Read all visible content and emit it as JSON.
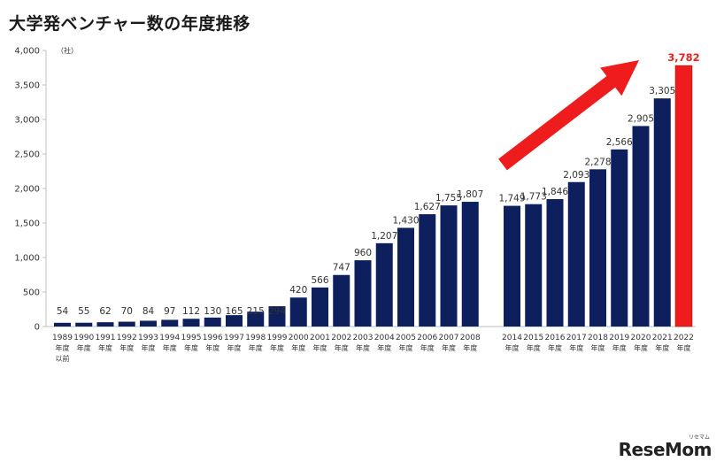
{
  "chart_data": {
    "type": "bar",
    "title": "大学発ベンチャー数の年度推移",
    "unit_label": "（社）",
    "ylim": [
      0,
      4000
    ],
    "yticks": [
      "0",
      "500",
      "1,000",
      "1,500",
      "2,000",
      "2,500",
      "3,000",
      "3,500",
      "4,000"
    ],
    "ytick_values": [
      0,
      500,
      1000,
      1500,
      2000,
      2500,
      3000,
      3500,
      4000
    ],
    "categories": [
      [
        "1989",
        "年度",
        "以前"
      ],
      [
        "1990",
        "年度"
      ],
      [
        "1991",
        "年度"
      ],
      [
        "1992",
        "年度"
      ],
      [
        "1993",
        "年度"
      ],
      [
        "1994",
        "年度"
      ],
      [
        "1995",
        "年度"
      ],
      [
        "1996",
        "年度"
      ],
      [
        "1997",
        "年度"
      ],
      [
        "1998",
        "年度"
      ],
      [
        "1999",
        "年度"
      ],
      [
        "2000",
        "年度"
      ],
      [
        "2001",
        "年度"
      ],
      [
        "2002",
        "年度"
      ],
      [
        "2003",
        "年度"
      ],
      [
        "2004",
        "年度"
      ],
      [
        "2005",
        "年度"
      ],
      [
        "2006",
        "年度"
      ],
      [
        "2007",
        "年度"
      ],
      [
        "2008",
        "年度"
      ],
      [
        "2014",
        "年度"
      ],
      [
        "2015",
        "年度"
      ],
      [
        "2016",
        "年度"
      ],
      [
        "2017",
        "年度"
      ],
      [
        "2018",
        "年度"
      ],
      [
        "2019",
        "年度"
      ],
      [
        "2020",
        "年度"
      ],
      [
        "2021",
        "年度"
      ],
      [
        "2022",
        "年度"
      ]
    ],
    "values": [
      54,
      55,
      62,
      70,
      84,
      97,
      112,
      130,
      165,
      215,
      294,
      420,
      566,
      747,
      960,
      1207,
      1430,
      1627,
      1755,
      1807,
      1749,
      1773,
      1846,
      2093,
      2278,
      2566,
      2905,
      3305,
      3782
    ],
    "labels": [
      "54",
      "55",
      "62",
      "70",
      "84",
      "97",
      "112",
      "130",
      "165",
      "215",
      "294",
      "420",
      "566",
      "747",
      "960",
      "1,207",
      "1,430",
      "1,627",
      "1,755",
      "1,807",
      "1,749",
      "1,773",
      "1,846",
      "2,093",
      "2,278",
      "2,566",
      "2,905",
      "3,305",
      "3,782"
    ],
    "highlight_index": 28,
    "colors": {
      "bar": "#0d1f5c",
      "highlight": "#ee1c1c",
      "highlight_label": "#e8231f",
      "arrow": "#ee1c1c",
      "axis": "#bfbfbf",
      "text": "#333333"
    },
    "annotation": {
      "kind": "arrow",
      "direction": "up-right",
      "color": "red"
    },
    "grid": false
  },
  "watermark": {
    "brand": "ReseMom",
    "sub": "リセマム"
  }
}
